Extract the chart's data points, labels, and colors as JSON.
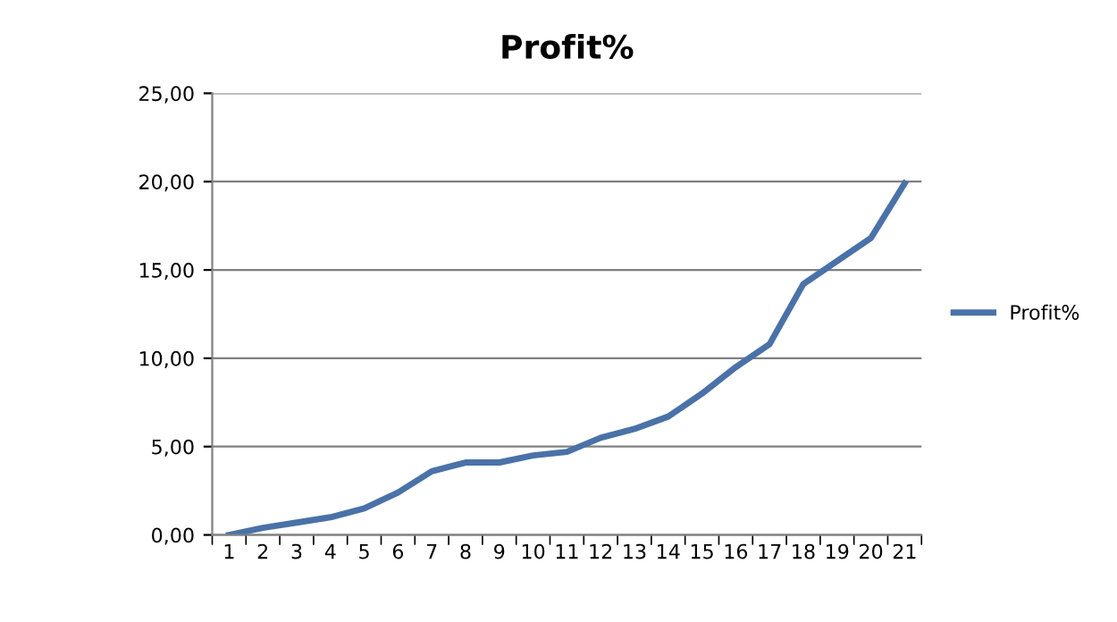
{
  "chart_data": {
    "type": "line",
    "title": "Profit%",
    "categories": [
      "1",
      "2",
      "3",
      "4",
      "5",
      "6",
      "7",
      "8",
      "9",
      "10",
      "11",
      "12",
      "13",
      "14",
      "15",
      "16",
      "17",
      "18",
      "19",
      "20",
      "21"
    ],
    "series": [
      {
        "name": "Profit%",
        "color": "#4a72a8",
        "values": [
          0.0,
          0.4,
          0.7,
          1.0,
          1.5,
          2.4,
          3.6,
          4.1,
          4.1,
          4.5,
          4.7,
          5.5,
          6.0,
          6.7,
          8.0,
          9.5,
          10.8,
          14.2,
          15.5,
          16.8,
          19.9
        ]
      }
    ],
    "ylim": [
      0,
      25
    ],
    "yticks": [
      {
        "value": 0,
        "label": "0,00"
      },
      {
        "value": 5,
        "label": "5,00"
      },
      {
        "value": 10,
        "label": "10,00"
      },
      {
        "value": 15,
        "label": "15,00"
      },
      {
        "value": 20,
        "label": "20,00"
      },
      {
        "value": 25,
        "label": "25,00"
      }
    ],
    "grid": "y",
    "legend": "right",
    "marker": "none",
    "line_style": "solid"
  }
}
